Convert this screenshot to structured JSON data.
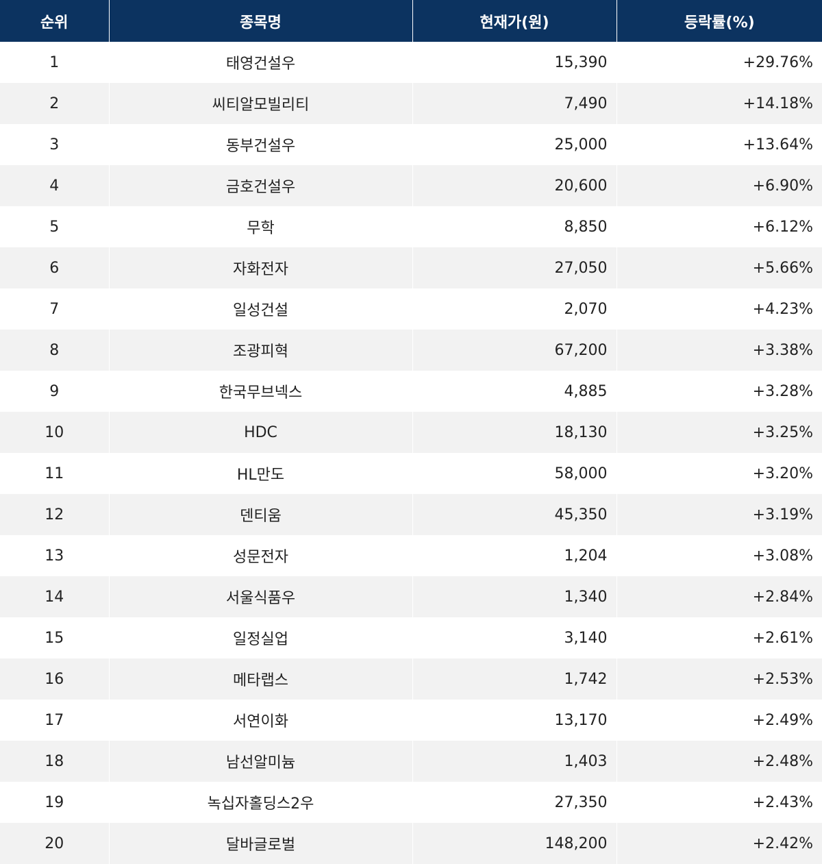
{
  "table": {
    "headers": {
      "rank": "순위",
      "name": "종목명",
      "price": "현재가(원)",
      "change": "등락률(%)"
    },
    "rows": [
      {
        "rank": "1",
        "name": "태영건설우",
        "price": "15,390",
        "change": "+29.76%"
      },
      {
        "rank": "2",
        "name": "씨티알모빌리티",
        "price": "7,490",
        "change": "+14.18%"
      },
      {
        "rank": "3",
        "name": "동부건설우",
        "price": "25,000",
        "change": "+13.64%"
      },
      {
        "rank": "4",
        "name": "금호건설우",
        "price": "20,600",
        "change": "+6.90%"
      },
      {
        "rank": "5",
        "name": "무학",
        "price": "8,850",
        "change": "+6.12%"
      },
      {
        "rank": "6",
        "name": "자화전자",
        "price": "27,050",
        "change": "+5.66%"
      },
      {
        "rank": "7",
        "name": "일성건설",
        "price": "2,070",
        "change": "+4.23%"
      },
      {
        "rank": "8",
        "name": "조광피혁",
        "price": "67,200",
        "change": "+3.38%"
      },
      {
        "rank": "9",
        "name": "한국무브넥스",
        "price": "4,885",
        "change": "+3.28%"
      },
      {
        "rank": "10",
        "name": "HDC",
        "price": "18,130",
        "change": "+3.25%"
      },
      {
        "rank": "11",
        "name": "HL만도",
        "price": "58,000",
        "change": "+3.20%"
      },
      {
        "rank": "12",
        "name": "덴티움",
        "price": "45,350",
        "change": "+3.19%"
      },
      {
        "rank": "13",
        "name": "성문전자",
        "price": "1,204",
        "change": "+3.08%"
      },
      {
        "rank": "14",
        "name": "서울식품우",
        "price": "1,340",
        "change": "+2.84%"
      },
      {
        "rank": "15",
        "name": "일정실업",
        "price": "3,140",
        "change": "+2.61%"
      },
      {
        "rank": "16",
        "name": "메타랩스",
        "price": "1,742",
        "change": "+2.53%"
      },
      {
        "rank": "17",
        "name": "서연이화",
        "price": "13,170",
        "change": "+2.49%"
      },
      {
        "rank": "18",
        "name": "남선알미늄",
        "price": "1,403",
        "change": "+2.48%"
      },
      {
        "rank": "19",
        "name": "녹십자홀딩스2우",
        "price": "27,350",
        "change": "+2.43%"
      },
      {
        "rank": "20",
        "name": "달바글로벌",
        "price": "148,200",
        "change": "+2.42%"
      }
    ]
  },
  "colors": {
    "header_bg": "#0c3360",
    "header_text": "#ffffff",
    "row_alt_bg": "#f2f2f2",
    "body_text": "#222222"
  }
}
